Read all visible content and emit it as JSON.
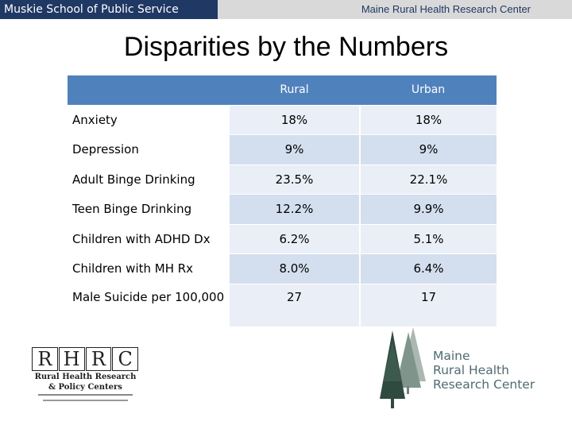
{
  "header": {
    "school": "Muskie School of Public Service",
    "center": "Maine Rural Health Research Center"
  },
  "slide": {
    "title": "Disparities by the Numbers"
  },
  "table": {
    "columns": [
      "Rural",
      "Urban"
    ],
    "rows": [
      {
        "label": "Anxiety",
        "rural": "18%",
        "urban": "18%"
      },
      {
        "label": "Depression",
        "rural": "9%",
        "urban": "9%"
      },
      {
        "label": "Adult Binge Drinking",
        "rural": "23.5%",
        "urban": "22.1%"
      },
      {
        "label": "Teen Binge Drinking",
        "rural": "12.2%",
        "urban": "9.9%"
      },
      {
        "label": "Children with ADHD Dx",
        "rural": "6.2%",
        "urban": "5.1%"
      },
      {
        "label": "Children with MH Rx",
        "rural": "8.0%",
        "urban": "6.4%"
      },
      {
        "label": "Male Suicide per 100,000",
        "rural": "27",
        "urban": "17"
      }
    ]
  },
  "logos": {
    "rhrc": {
      "letters": [
        "R",
        "H",
        "R",
        "C"
      ],
      "line1": "Rural Health Research",
      "line2": "& Policy Centers"
    },
    "mrhrc": {
      "line1": "Maine",
      "line2": "Rural Health",
      "line3": "Research Center"
    }
  },
  "colors": {
    "header_navy": "#1f3864",
    "table_header": "#4f81bd",
    "row_light": "#eaeff7",
    "row_alt": "#d3dfee",
    "logo_green": "#4e6b70"
  }
}
